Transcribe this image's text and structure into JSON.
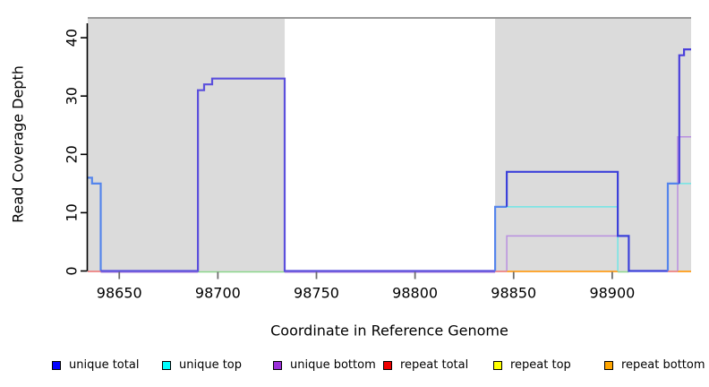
{
  "chart_data": {
    "type": "line-step",
    "title": "",
    "xlabel": "Coordinate in Reference Genome",
    "ylabel": "Read Coverage Depth",
    "xlim": [
      98634,
      98940
    ],
    "ylim": [
      0,
      43.4
    ],
    "xticks": [
      98650,
      98700,
      98750,
      98800,
      98850,
      98900
    ],
    "yticks": [
      0,
      10,
      20,
      30,
      40
    ],
    "grid": false,
    "legend_position": "bottom",
    "colors": {
      "region_fill": "#DBDBDB",
      "frame_rule": "#999999",
      "axis": "#000000",
      "x_tick": "#6E6E6E"
    },
    "shaded_regions": [
      {
        "name": "repeat-region-left",
        "x0": 98634,
        "x1": 98733.9
      },
      {
        "name": "repeat-region-right",
        "x0": 98840.6,
        "x1": 98940
      }
    ],
    "legend": [
      {
        "label": "unique total",
        "color": "#0000FF"
      },
      {
        "label": "unique top",
        "color": "#00FFFF"
      },
      {
        "label": "unique bottom",
        "color": "#9B2FD9"
      },
      {
        "label": "repeat total",
        "color": "#EE0000"
      },
      {
        "label": "repeat top",
        "color": "#FFFF00"
      },
      {
        "label": "repeat bottom",
        "color": "#FFA500"
      }
    ],
    "series": [
      {
        "name": "unique-bottom-zero-a",
        "color": "#B98FE0",
        "lw": 1.3,
        "dy": 1.5,
        "points": [
          [
            98640.6,
            0
          ],
          [
            98689.9,
            0
          ]
        ]
      },
      {
        "name": "unique-bottom-zero-b",
        "color": "#B98FE0",
        "lw": 1.3,
        "dy": 1.5,
        "points": [
          [
            98733.9,
            0
          ],
          [
            98840.6,
            0
          ]
        ]
      },
      {
        "name": "zero-green-a",
        "color": "#8CD68C",
        "lw": 1.5,
        "dy": 1,
        "points": [
          [
            98689.9,
            0
          ],
          [
            98733.9,
            0
          ]
        ]
      },
      {
        "name": "zero-green-b",
        "color": "#8CD68C",
        "lw": 1.5,
        "dy": 1,
        "points": [
          [
            98902.8,
            0
          ],
          [
            98908.4,
            0
          ]
        ]
      },
      {
        "name": "repeat-total-zero-a",
        "color": "#EE7070",
        "lw": 1.5,
        "dy": 0.5,
        "points": [
          [
            98634,
            0
          ],
          [
            98640.8,
            0
          ]
        ]
      },
      {
        "name": "repeat-total-zero-b",
        "color": "#EE7070",
        "lw": 1.5,
        "dy": 0.5,
        "points": [
          [
            98840.6,
            0
          ],
          [
            98846.5,
            0
          ]
        ]
      },
      {
        "name": "repeat-total-zero-c",
        "color": "#EE7070",
        "lw": 1.5,
        "dy": 0.5,
        "points": [
          [
            98928.2,
            0
          ],
          [
            98933.2,
            0
          ]
        ]
      },
      {
        "name": "repeat-bottom-zero-a",
        "color": "#FF9E1B",
        "lw": 1.8,
        "dy": 0.5,
        "points": [
          [
            98846.5,
            0
          ],
          [
            98902.8,
            0
          ]
        ]
      },
      {
        "name": "repeat-bottom-zero-b",
        "color": "#FF9E1B",
        "lw": 1.8,
        "dy": 0.5,
        "points": [
          [
            98933.2,
            0
          ],
          [
            98940,
            0
          ]
        ]
      },
      {
        "name": "unique-top-mid",
        "color": "#70E6E6",
        "lw": 1.5,
        "points": [
          [
            98846.5,
            11
          ],
          [
            98902.8,
            11
          ],
          [
            98902.8,
            0
          ]
        ]
      },
      {
        "name": "unique-top-right",
        "color": "#70E6E6",
        "lw": 1.5,
        "points": [
          [
            98928.2,
            15
          ],
          [
            98940,
            15
          ]
        ]
      },
      {
        "name": "unique-bottom-mid",
        "color": "#B98FE0",
        "lw": 1.5,
        "points": [
          [
            98846.5,
            0
          ],
          [
            98846.5,
            6
          ],
          [
            98908.4,
            6
          ],
          [
            98908.4,
            0
          ]
        ]
      },
      {
        "name": "unique-bottom-right",
        "color": "#B98FE0",
        "lw": 1.5,
        "points": [
          [
            98933.2,
            0
          ],
          [
            98933.2,
            23
          ],
          [
            98940,
            23
          ]
        ]
      },
      {
        "name": "unique-total-left-peak",
        "color": "#5585EC",
        "lw": 2.2,
        "points": [
          [
            98634,
            16
          ],
          [
            98636.2,
            16
          ],
          [
            98636.2,
            15
          ],
          [
            98640.6,
            15
          ],
          [
            98640.6,
            0
          ]
        ]
      },
      {
        "name": "unique-total-peak2",
        "color": "#5B4FDC",
        "lw": 2.2,
        "points": [
          [
            98640.6,
            0
          ],
          [
            98689.9,
            0
          ],
          [
            98689.9,
            31
          ],
          [
            98693,
            31
          ],
          [
            98693,
            32
          ],
          [
            98697.1,
            32
          ],
          [
            98697.1,
            33
          ],
          [
            98733.9,
            33
          ],
          [
            98733.9,
            0
          ],
          [
            98840.6,
            0
          ]
        ]
      },
      {
        "name": "unique-total-mid-rise",
        "color": "#5585EC",
        "lw": 2.2,
        "points": [
          [
            98840.6,
            0
          ],
          [
            98840.6,
            11
          ],
          [
            98846.5,
            11
          ]
        ]
      },
      {
        "name": "unique-total-mid",
        "color": "#3C41DA",
        "lw": 2.2,
        "points": [
          [
            98846.5,
            11
          ],
          [
            98846.5,
            17
          ],
          [
            98902.8,
            17
          ],
          [
            98902.8,
            6
          ],
          [
            98908.4,
            6
          ],
          [
            98908.4,
            0
          ],
          [
            98928.2,
            0
          ]
        ]
      },
      {
        "name": "unique-total-right-rise",
        "color": "#5585EC",
        "lw": 2.2,
        "points": [
          [
            98928.2,
            0
          ],
          [
            98928.2,
            15
          ],
          [
            98934,
            15
          ]
        ]
      },
      {
        "name": "unique-total-right-peak",
        "color": "#4A3FDB",
        "lw": 2.2,
        "points": [
          [
            98934,
            15
          ],
          [
            98934,
            37
          ],
          [
            98936.4,
            37
          ],
          [
            98936.4,
            38
          ],
          [
            98940,
            38
          ]
        ]
      }
    ]
  }
}
